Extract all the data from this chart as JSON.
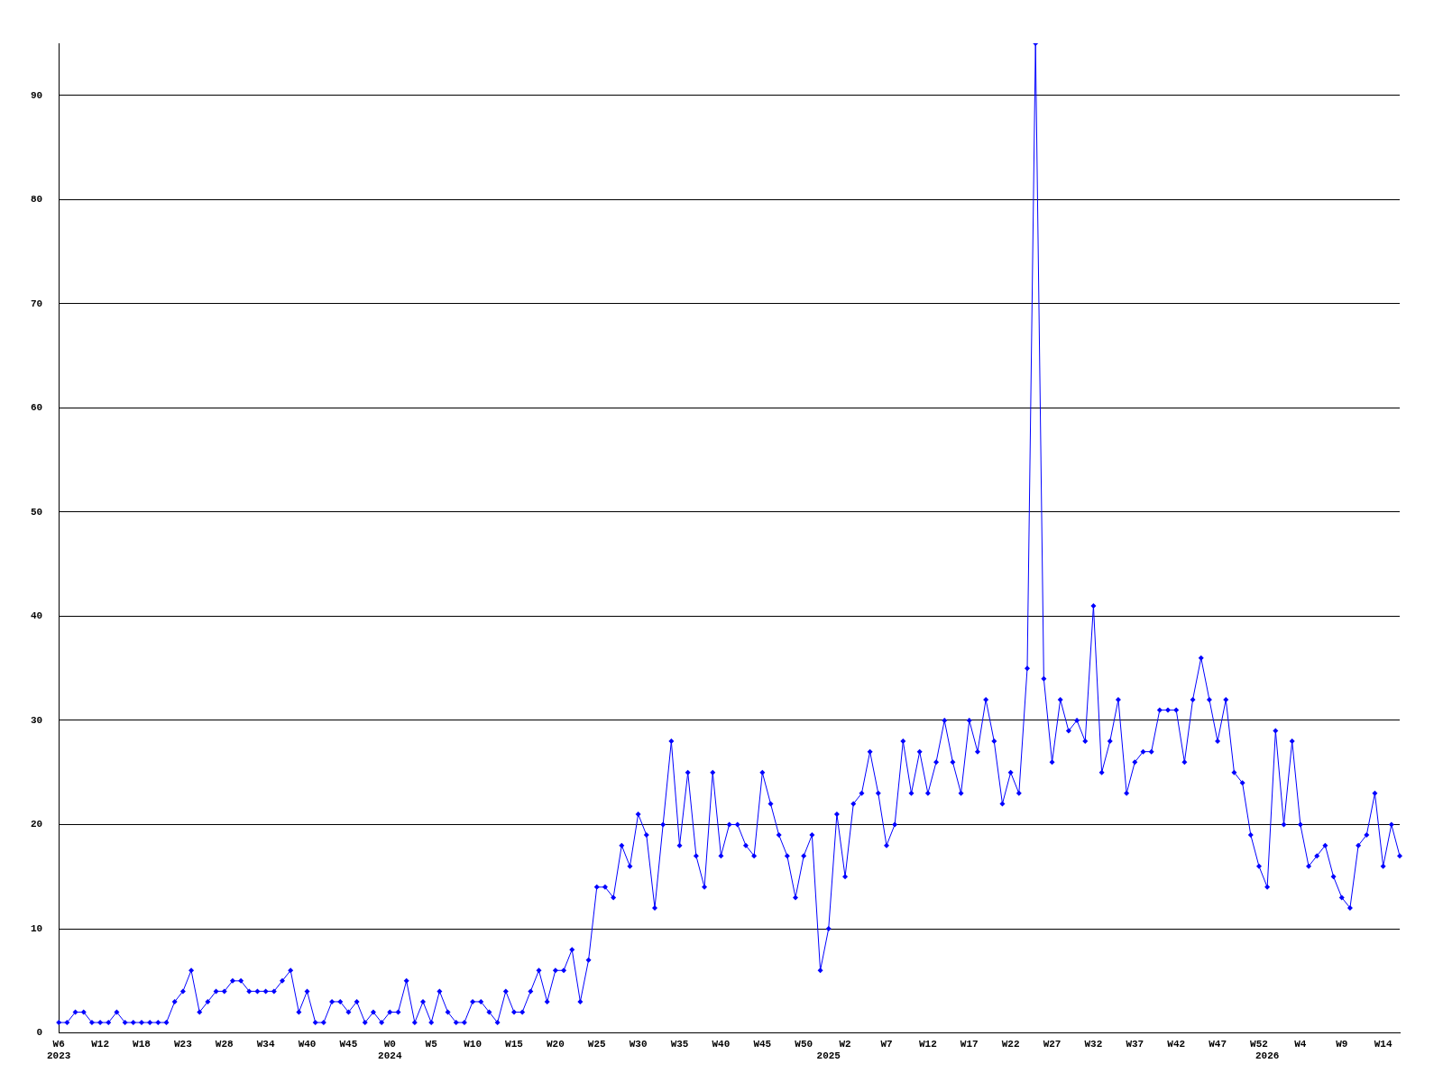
{
  "chart_data": {
    "type": "line",
    "categories": [
      "W6\n2023",
      null,
      null,
      null,
      null,
      "W12",
      null,
      null,
      null,
      null,
      "W18",
      null,
      null,
      null,
      null,
      "W23",
      null,
      null,
      null,
      null,
      "W28",
      null,
      null,
      null,
      null,
      "W34",
      null,
      null,
      null,
      null,
      "W40",
      null,
      null,
      null,
      null,
      "W45",
      null,
      null,
      null,
      null,
      "W0\n2024",
      null,
      null,
      null,
      null,
      "W5",
      null,
      null,
      null,
      null,
      "W10",
      null,
      null,
      null,
      null,
      "W15",
      null,
      null,
      null,
      null,
      "W20",
      null,
      null,
      null,
      null,
      "W25",
      null,
      null,
      null,
      null,
      "W30",
      null,
      null,
      null,
      null,
      "W35",
      null,
      null,
      null,
      null,
      "W40",
      null,
      null,
      null,
      null,
      "W45",
      null,
      null,
      null,
      null,
      "W50",
      null,
      null,
      "\n2025",
      null,
      "W2",
      null,
      null,
      null,
      null,
      "W7",
      null,
      null,
      null,
      null,
      "W12",
      null,
      null,
      null,
      null,
      "W17",
      null,
      null,
      null,
      null,
      "W22",
      null,
      null,
      null,
      null,
      "W27",
      null,
      null,
      null,
      null,
      "W32",
      null,
      null,
      null,
      null,
      "W37",
      null,
      null,
      null,
      null,
      "W42",
      null,
      null,
      null,
      null,
      "W47",
      null,
      null,
      null,
      null,
      "W52",
      "\n2026",
      null,
      null,
      null,
      "W4",
      null,
      null,
      null,
      null,
      "W9",
      null,
      null,
      null,
      null,
      "W14",
      null,
      null
    ],
    "values": [
      1,
      1,
      2,
      2,
      1,
      1,
      1,
      2,
      1,
      1,
      1,
      1,
      1,
      1,
      3,
      4,
      6,
      2,
      3,
      4,
      4,
      5,
      5,
      4,
      4,
      4,
      4,
      5,
      6,
      2,
      4,
      1,
      1,
      3,
      3,
      2,
      3,
      1,
      2,
      1,
      2,
      2,
      5,
      1,
      3,
      1,
      4,
      2,
      1,
      1,
      3,
      3,
      2,
      1,
      4,
      2,
      2,
      4,
      6,
      3,
      6,
      6,
      8,
      3,
      7,
      14,
      14,
      13,
      18,
      16,
      21,
      19,
      12,
      20,
      28,
      18,
      25,
      17,
      14,
      25,
      17,
      20,
      20,
      18,
      17,
      25,
      22,
      19,
      17,
      13,
      17,
      19,
      6,
      10,
      21,
      15,
      22,
      23,
      27,
      23,
      18,
      20,
      28,
      23,
      27,
      23,
      26,
      30,
      26,
      23,
      30,
      27,
      32,
      28,
      22,
      25,
      23,
      35,
      95,
      34,
      26,
      32,
      29,
      30,
      28,
      41,
      25,
      28,
      32,
      23,
      26,
      27,
      27,
      31,
      31,
      31,
      26,
      32,
      36,
      32,
      28,
      32,
      25,
      24,
      19,
      16,
      14,
      29,
      20,
      28,
      20,
      16,
      17,
      18,
      15,
      13,
      12,
      18,
      19,
      23,
      16,
      20,
      17
    ],
    "color": "#0000ff",
    "ylim": [
      0,
      95
    ],
    "yticks": [
      0,
      10,
      20,
      30,
      40,
      50,
      60,
      70,
      80,
      90
    ],
    "grid": "y",
    "marker": "diamond",
    "line_style": "solid"
  }
}
